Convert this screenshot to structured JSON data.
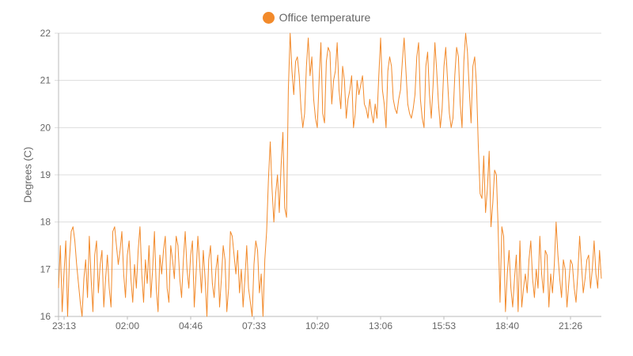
{
  "chart_data": {
    "type": "line",
    "ylabel": "Degrees (C)",
    "ylim": [
      16,
      22
    ],
    "yticks": [
      "16",
      "17",
      "18",
      "19",
      "20",
      "21",
      "22"
    ],
    "xticks": [
      "23:13",
      "02:00",
      "04:46",
      "07:33",
      "10:20",
      "13:06",
      "15:53",
      "18:40",
      "21:26"
    ],
    "x_range": [
      "23:13",
      "23:59"
    ],
    "grid": true,
    "legend_position": "top-center",
    "series": [
      {
        "name": "Office temperature",
        "color": "#f28a2b",
        "values": [
          16.6,
          17.5,
          16.1,
          16.9,
          17.6,
          16.0,
          17.2,
          17.8,
          17.9,
          17.6,
          17.1,
          16.7,
          16.3,
          16.0,
          16.8,
          17.2,
          16.4,
          17.7,
          16.8,
          16.1,
          17.3,
          17.6,
          16.5,
          17.1,
          17.4,
          16.2,
          16.8,
          17.3,
          16.6,
          16.2,
          17.8,
          17.9,
          17.5,
          17.1,
          17.4,
          17.8,
          16.9,
          16.4,
          17.3,
          17.6,
          16.8,
          16.3,
          17.1,
          16.6,
          17.4,
          17.9,
          16.9,
          16.3,
          17.2,
          16.7,
          17.5,
          16.4,
          17.0,
          17.8,
          16.6,
          16.1,
          17.3,
          16.9,
          17.4,
          17.7,
          16.6,
          16.3,
          17.5,
          17.2,
          16.8,
          17.7,
          17.5,
          16.8,
          16.4,
          17.2,
          17.8,
          17.0,
          16.6,
          17.3,
          17.6,
          16.2,
          16.9,
          17.7,
          17.1,
          16.5,
          17.4,
          16.8,
          16.0,
          17.2,
          17.5,
          16.7,
          16.4,
          17.0,
          17.3,
          16.2,
          16.8,
          17.5,
          17.2,
          16.1,
          16.6,
          17.8,
          17.7,
          17.3,
          16.9,
          17.4,
          16.5,
          17.0,
          16.2,
          16.8,
          17.5,
          16.6,
          16.3,
          16.0,
          17.1,
          17.6,
          17.4,
          16.5,
          16.9,
          16.0,
          17.2,
          17.8,
          18.9,
          19.7,
          18.7,
          18.0,
          18.6,
          19.0,
          18.2,
          19.2,
          19.9,
          18.3,
          18.1,
          20.8,
          22.0,
          21.2,
          20.7,
          21.4,
          21.5,
          21.1,
          20.4,
          20.0,
          20.3,
          21.3,
          21.9,
          21.1,
          21.5,
          20.6,
          20.2,
          20.0,
          21.0,
          21.8,
          20.3,
          20.1,
          21.4,
          21.7,
          21.6,
          20.5,
          21.0,
          21.2,
          21.8,
          20.8,
          20.4,
          21.3,
          21.0,
          20.2,
          20.6,
          20.8,
          21.1,
          20.0,
          20.3,
          21.0,
          20.7,
          20.9,
          21.1,
          20.5,
          20.4,
          20.2,
          20.6,
          20.3,
          20.1,
          20.5,
          20.2,
          21.1,
          21.9,
          20.8,
          20.5,
          20.0,
          21.2,
          21.5,
          21.3,
          20.6,
          20.4,
          20.3,
          20.6,
          20.8,
          21.4,
          21.9,
          21.2,
          20.5,
          20.3,
          20.2,
          20.4,
          20.7,
          21.5,
          21.8,
          20.6,
          20.2,
          20.0,
          21.3,
          21.6,
          20.7,
          20.2,
          20.9,
          21.8,
          21.2,
          20.5,
          20.0,
          20.4,
          21.3,
          21.7,
          21.0,
          20.3,
          20.0,
          20.2,
          21.1,
          21.7,
          21.5,
          20.5,
          20.0,
          21.4,
          22.0,
          21.6,
          20.8,
          20.1,
          21.3,
          21.5,
          20.9,
          19.6,
          18.6,
          18.5,
          19.4,
          18.2,
          18.7,
          19.5,
          17.9,
          18.4,
          19.1,
          19.0,
          17.8,
          16.3,
          17.9,
          17.7,
          16.1,
          16.9,
          17.4,
          16.6,
          16.2,
          16.8,
          17.3,
          16.1,
          17.6,
          16.2,
          16.6,
          16.9,
          16.5,
          17.2,
          17.6,
          16.8,
          16.4,
          17.0,
          16.6,
          17.7,
          16.9,
          16.5,
          17.4,
          17.3,
          16.2,
          16.9,
          16.5,
          17.1,
          18.0,
          17.3,
          16.8,
          16.4,
          17.2,
          17.0,
          16.2,
          16.7,
          17.2,
          17.1,
          16.6,
          16.3,
          16.9,
          17.7,
          17.1,
          16.5,
          16.8,
          17.2,
          17.3,
          16.6,
          17.0,
          17.6,
          16.9,
          16.6,
          17.4,
          16.8
        ]
      }
    ]
  }
}
